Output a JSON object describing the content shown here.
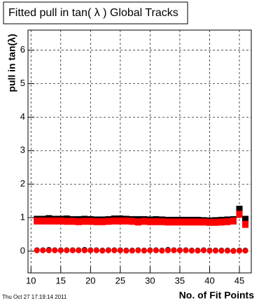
{
  "chart_data": {
    "type": "scatter",
    "title": "Fitted pull in tan( λ )  Global Tracks",
    "y_label": "pull in tan(λ)",
    "x_label": "No. of Fit Points",
    "timestamp": "Thu Oct 27 17:19:14 2011",
    "x": [
      11,
      12,
      13,
      14,
      15,
      16,
      17,
      18,
      19,
      20,
      21,
      22,
      23,
      24,
      25,
      26,
      27,
      28,
      29,
      30,
      31,
      32,
      33,
      34,
      35,
      36,
      37,
      38,
      39,
      40,
      41,
      42,
      43,
      44,
      45,
      46
    ],
    "series": [
      {
        "color": "#000000",
        "values": [
          0.95,
          0.95,
          0.97,
          0.95,
          0.95,
          0.96,
          0.94,
          0.94,
          0.95,
          0.94,
          0.93,
          0.93,
          0.94,
          0.96,
          0.96,
          0.95,
          0.94,
          0.94,
          0.94,
          0.93,
          0.94,
          0.93,
          0.92,
          0.92,
          0.92,
          0.92,
          0.92,
          0.92,
          0.91,
          0.9,
          0.91,
          0.92,
          0.93,
          0.94,
          1.25,
          0.95
        ]
      },
      {
        "color": "#ff0000",
        "values": [
          0.9,
          0.9,
          0.9,
          0.9,
          0.9,
          0.89,
          0.89,
          0.88,
          0.89,
          0.89,
          0.88,
          0.88,
          0.89,
          0.9,
          0.9,
          0.9,
          0.89,
          0.87,
          0.89,
          0.88,
          0.88,
          0.88,
          0.87,
          0.87,
          0.87,
          0.87,
          0.87,
          0.87,
          0.87,
          0.86,
          0.86,
          0.87,
          0.88,
          0.9,
          1.1,
          0.8
        ]
      },
      {
        "color": "#000000",
        "values": [
          0.03,
          0.03,
          0.04,
          0.03,
          0.03,
          0.03,
          0.03,
          0.03,
          0.04,
          0.03,
          0.03,
          0.02,
          0.03,
          0.03,
          0.03,
          0.02,
          0.02,
          0.03,
          0.02,
          0.03,
          0.03,
          0.02,
          0.04,
          0.03,
          0.03,
          0.03,
          0.02,
          0.02,
          0.03,
          0.02,
          0.02,
          0.02,
          0.02,
          0.01,
          0.02,
          0.02
        ]
      },
      {
        "color": "#ff0000",
        "values": [
          0.02,
          0.02,
          0.02,
          0.02,
          0.02,
          0.02,
          0.02,
          0.02,
          0.02,
          0.02,
          0.02,
          0.01,
          0.02,
          0.02,
          0.02,
          0.01,
          0.01,
          0.02,
          0.01,
          0.02,
          0.02,
          0.01,
          0.02,
          0.02,
          0.02,
          0.02,
          0.01,
          0.01,
          0.02,
          0.01,
          0.01,
          0.01,
          0.01,
          0.0,
          0.01,
          0.01
        ]
      }
    ],
    "xlim": [
      9.5,
      47
    ],
    "ylim": [
      -0.65,
      6.6
    ],
    "xticks": [
      10,
      15,
      20,
      25,
      30,
      35,
      40,
      45
    ],
    "yticks": [
      0,
      1,
      2,
      3,
      4,
      5,
      6
    ],
    "grid": true
  }
}
